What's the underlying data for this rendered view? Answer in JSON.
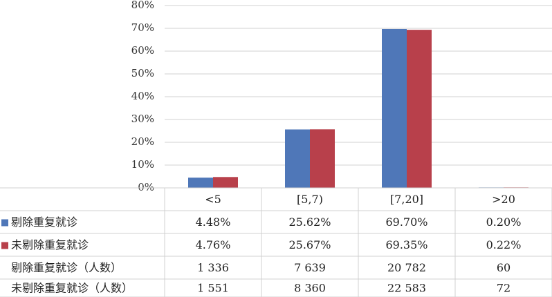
{
  "chart_data": {
    "type": "bar",
    "categories": [
      "<5",
      "[5,7)",
      "[7,20]",
      ">20"
    ],
    "series": [
      {
        "name": "剔除重复就诊",
        "color": "#4f77b8",
        "values": [
          4.48,
          25.62,
          69.7,
          0.2
        ],
        "labels": [
          "4.48%",
          "25.62%",
          "69.70%",
          "0.20%"
        ]
      },
      {
        "name": "未剔除重复就诊",
        "color": "#b8404b",
        "values": [
          4.76,
          25.67,
          69.35,
          0.22
        ],
        "labels": [
          "4.76%",
          "25.67%",
          "69.35%",
          "0.22%"
        ]
      }
    ],
    "yticks": [
      "0%",
      "10%",
      "20%",
      "30%",
      "40%",
      "50%",
      "60%",
      "70%",
      "80%"
    ],
    "ylim": [
      0,
      80
    ],
    "grid": true,
    "table_rows": [
      {
        "label": "剔除重复就诊（人数）",
        "values": [
          "1 336",
          "7 639",
          "20 782",
          "60"
        ]
      },
      {
        "label": "未剔除重复就诊（人数）",
        "values": [
          "1 551",
          "8 360",
          "22 583",
          "72"
        ]
      }
    ]
  }
}
